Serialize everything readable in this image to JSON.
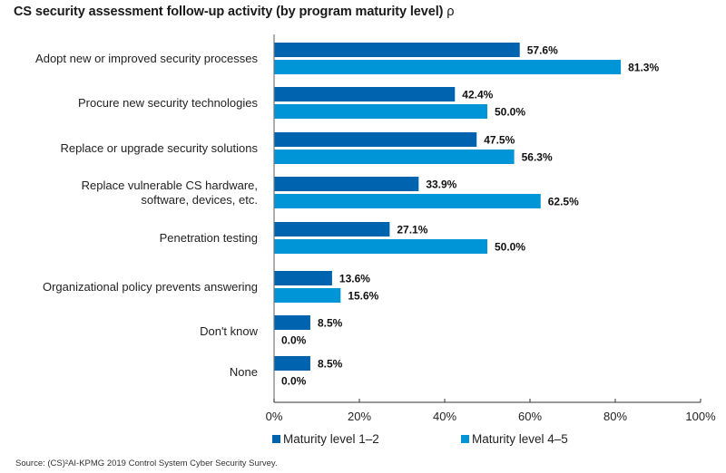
{
  "chart_data": {
    "type": "bar",
    "orientation": "horizontal",
    "title": "CS security assessment follow-up activity (by program maturity level)",
    "title_suffix": "ρ",
    "categories": [
      [
        "Adopt new or improved security processes"
      ],
      [
        "Procure new security technologies"
      ],
      [
        "Replace or upgrade security solutions"
      ],
      [
        "Replace vulnerable CS hardware,",
        "software, devices, etc."
      ],
      [
        "Penetration testing"
      ],
      [
        "Organizational policy prevents answering"
      ],
      [
        "Don't know"
      ],
      [
        "None"
      ]
    ],
    "series": [
      {
        "name": "Maturity level 1–2",
        "color": "#0063B0",
        "values": [
          57.6,
          42.4,
          47.5,
          33.9,
          27.1,
          13.6,
          8.5,
          8.5
        ],
        "labels": [
          "57.6%",
          "42.4%",
          "47.5%",
          "33.9%",
          "27.1%",
          "13.6%",
          "8.5%",
          "8.5%"
        ]
      },
      {
        "name": "Maturity level 4–5",
        "color": "#0095D6",
        "values": [
          81.3,
          50.0,
          56.3,
          62.5,
          50.0,
          15.6,
          0.0,
          0.0
        ],
        "labels": [
          "81.3%",
          "50.0%",
          "56.3%",
          "62.5%",
          "50.0%",
          "15.6%",
          "0.0%",
          "0.0%"
        ]
      }
    ],
    "xlabel": "",
    "ylabel": "",
    "xlim": [
      0,
      100
    ],
    "xticks": [
      0,
      20,
      40,
      60,
      80,
      100
    ],
    "xtick_labels": [
      "0%",
      "20%",
      "40%",
      "60%",
      "80%",
      "100%"
    ],
    "grid": false,
    "legend_position": "bottom"
  },
  "source": "Source: (CS)²AI-KPMG 2019 Control System Cyber Security Survey."
}
